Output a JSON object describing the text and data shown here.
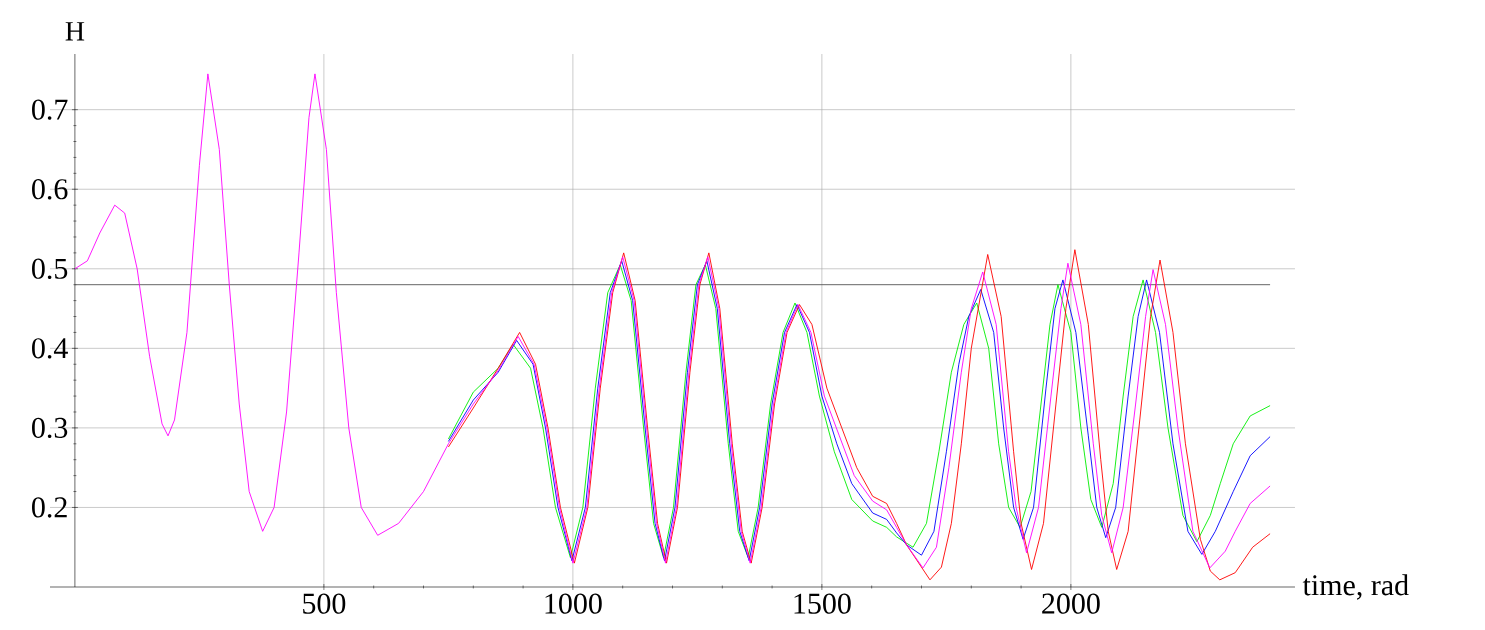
{
  "chart_data": {
    "type": "line",
    "xlabel": "time, rad",
    "ylabel": "H",
    "xlim": [
      -50,
      2450
    ],
    "ylim": [
      0.1,
      0.77
    ],
    "xticks": [
      500,
      1000,
      1500,
      2000
    ],
    "yticks": [
      0.2,
      0.3,
      0.4,
      0.5,
      0.6,
      0.7
    ],
    "grid": true,
    "ref_lines": [
      {
        "axis": "y",
        "value": 0.48,
        "color": "#555555"
      }
    ],
    "series": [
      {
        "color": "#00ee00",
        "x": [
          750,
          800,
          850,
          880,
          915,
          940,
          965,
          995,
          1020,
          1045,
          1070,
          1095,
          1117,
          1142,
          1162,
          1182,
          1202,
          1227,
          1247,
          1266,
          1287,
          1312,
          1332,
          1352,
          1372,
          1397,
          1422,
          1446,
          1470,
          1495,
          1525,
          1560,
          1602,
          1630,
          1650,
          1683,
          1710,
          1735,
          1760,
          1785,
          1811,
          1835,
          1855,
          1875,
          1898,
          1920,
          1940,
          1958,
          1974,
          2000,
          2020,
          2040,
          2062,
          2085,
          2105,
          2125,
          2145,
          2170,
          2195,
          2225,
          2253,
          2280,
          2300,
          2326,
          2360,
          2400
        ],
        "values": [
          0.286,
          0.345,
          0.375,
          0.405,
          0.375,
          0.3,
          0.2,
          0.137,
          0.2,
          0.35,
          0.47,
          0.505,
          0.46,
          0.3,
          0.18,
          0.137,
          0.2,
          0.37,
          0.48,
          0.505,
          0.45,
          0.28,
          0.17,
          0.137,
          0.2,
          0.33,
          0.42,
          0.457,
          0.42,
          0.34,
          0.27,
          0.21,
          0.183,
          0.175,
          0.163,
          0.15,
          0.18,
          0.27,
          0.37,
          0.43,
          0.457,
          0.4,
          0.28,
          0.2,
          0.175,
          0.22,
          0.33,
          0.43,
          0.48,
          0.42,
          0.3,
          0.21,
          0.175,
          0.23,
          0.34,
          0.44,
          0.486,
          0.42,
          0.3,
          0.19,
          0.157,
          0.19,
          0.23,
          0.28,
          0.315,
          0.328
        ]
      },
      {
        "color": "#0000ff",
        "x": [
          750,
          800,
          850,
          887,
          920,
          945,
          970,
          998,
          1025,
          1050,
          1075,
          1098,
          1120,
          1145,
          1165,
          1184,
          1205,
          1230,
          1250,
          1269,
          1290,
          1315,
          1335,
          1354,
          1375,
          1400,
          1425,
          1450,
          1475,
          1500,
          1530,
          1560,
          1602,
          1630,
          1650,
          1670,
          1700,
          1725,
          1750,
          1775,
          1795,
          1819,
          1845,
          1865,
          1885,
          1904,
          1925,
          1950,
          1968,
          1984,
          2010,
          2035,
          2052,
          2070,
          2090,
          2115,
          2135,
          2152,
          2178,
          2205,
          2235,
          2263,
          2290,
          2326,
          2360,
          2400
        ],
        "values": [
          0.283,
          0.335,
          0.37,
          0.41,
          0.38,
          0.3,
          0.2,
          0.133,
          0.2,
          0.35,
          0.47,
          0.51,
          0.46,
          0.3,
          0.18,
          0.133,
          0.2,
          0.37,
          0.48,
          0.51,
          0.45,
          0.28,
          0.17,
          0.133,
          0.2,
          0.33,
          0.42,
          0.455,
          0.42,
          0.34,
          0.28,
          0.23,
          0.193,
          0.185,
          0.168,
          0.153,
          0.14,
          0.17,
          0.27,
          0.38,
          0.44,
          0.474,
          0.42,
          0.3,
          0.2,
          0.16,
          0.2,
          0.35,
          0.45,
          0.486,
          0.42,
          0.29,
          0.2,
          0.162,
          0.2,
          0.34,
          0.44,
          0.486,
          0.42,
          0.28,
          0.17,
          0.141,
          0.17,
          0.22,
          0.265,
          0.289
        ]
      },
      {
        "color": "#ff0000",
        "x": [
          750,
          800,
          850,
          893,
          925,
          950,
          975,
          1003,
          1030,
          1055,
          1080,
          1102,
          1125,
          1150,
          1170,
          1188,
          1210,
          1235,
          1255,
          1273,
          1295,
          1320,
          1340,
          1358,
          1380,
          1405,
          1430,
          1455,
          1480,
          1510,
          1540,
          1570,
          1602,
          1630,
          1650,
          1670,
          1717,
          1740,
          1760,
          1780,
          1800,
          1833,
          1860,
          1885,
          1900,
          1921,
          1945,
          1970,
          1990,
          2008,
          2035,
          2060,
          2075,
          2092,
          2115,
          2140,
          2160,
          2179,
          2205,
          2230,
          2260,
          2280,
          2299,
          2330,
          2365,
          2400
        ],
        "values": [
          0.276,
          0.325,
          0.375,
          0.42,
          0.38,
          0.3,
          0.2,
          0.13,
          0.2,
          0.35,
          0.47,
          0.52,
          0.46,
          0.3,
          0.18,
          0.13,
          0.2,
          0.37,
          0.48,
          0.52,
          0.45,
          0.28,
          0.17,
          0.13,
          0.2,
          0.33,
          0.42,
          0.455,
          0.43,
          0.35,
          0.3,
          0.25,
          0.214,
          0.205,
          0.18,
          0.153,
          0.109,
          0.125,
          0.18,
          0.28,
          0.4,
          0.518,
          0.44,
          0.27,
          0.18,
          0.122,
          0.18,
          0.33,
          0.45,
          0.524,
          0.43,
          0.26,
          0.17,
          0.122,
          0.17,
          0.32,
          0.44,
          0.511,
          0.42,
          0.28,
          0.16,
          0.12,
          0.109,
          0.118,
          0.15,
          0.167
        ]
      },
      {
        "color": "#ff00ff",
        "x": [
          0,
          25,
          50,
          80,
          100,
          125,
          150,
          175,
          187,
          200,
          225,
          250,
          267,
          290,
          310,
          330,
          350,
          377,
          400,
          425,
          450,
          470,
          482,
          505,
          525,
          550,
          575,
          608,
          650,
          700,
          750,
          800,
          850,
          890,
          922,
          948,
          973,
          1000,
          1028,
          1053,
          1078,
          1100,
          1123,
          1148,
          1168,
          1186,
          1208,
          1233,
          1253,
          1271,
          1293,
          1318,
          1338,
          1356,
          1378,
          1403,
          1428,
          1452,
          1478,
          1505,
          1535,
          1565,
          1602,
          1630,
          1650,
          1670,
          1703,
          1730,
          1755,
          1780,
          1800,
          1823,
          1850,
          1875,
          1890,
          1911,
          1935,
          1960,
          1980,
          1994,
          2020,
          2045,
          2062,
          2082,
          2105,
          2130,
          2150,
          2165,
          2190,
          2215,
          2245,
          2279,
          2310,
          2330,
          2360,
          2400
        ],
        "values": [
          0.5,
          0.51,
          0.545,
          0.58,
          0.57,
          0.5,
          0.39,
          0.305,
          0.29,
          0.31,
          0.42,
          0.63,
          0.745,
          0.65,
          0.48,
          0.33,
          0.22,
          0.17,
          0.2,
          0.32,
          0.52,
          0.69,
          0.745,
          0.65,
          0.47,
          0.3,
          0.2,
          0.165,
          0.18,
          0.22,
          0.28,
          0.33,
          0.372,
          0.415,
          0.38,
          0.3,
          0.2,
          0.13,
          0.2,
          0.35,
          0.47,
          0.515,
          0.46,
          0.3,
          0.18,
          0.13,
          0.2,
          0.37,
          0.48,
          0.515,
          0.45,
          0.28,
          0.17,
          0.13,
          0.2,
          0.33,
          0.42,
          0.455,
          0.42,
          0.34,
          0.29,
          0.24,
          0.208,
          0.197,
          0.175,
          0.153,
          0.124,
          0.15,
          0.25,
          0.37,
          0.45,
          0.496,
          0.43,
          0.27,
          0.2,
          0.143,
          0.2,
          0.34,
          0.45,
          0.507,
          0.43,
          0.28,
          0.19,
          0.143,
          0.2,
          0.33,
          0.44,
          0.499,
          0.43,
          0.3,
          0.17,
          0.124,
          0.145,
          0.17,
          0.205,
          0.227
        ]
      }
    ]
  }
}
